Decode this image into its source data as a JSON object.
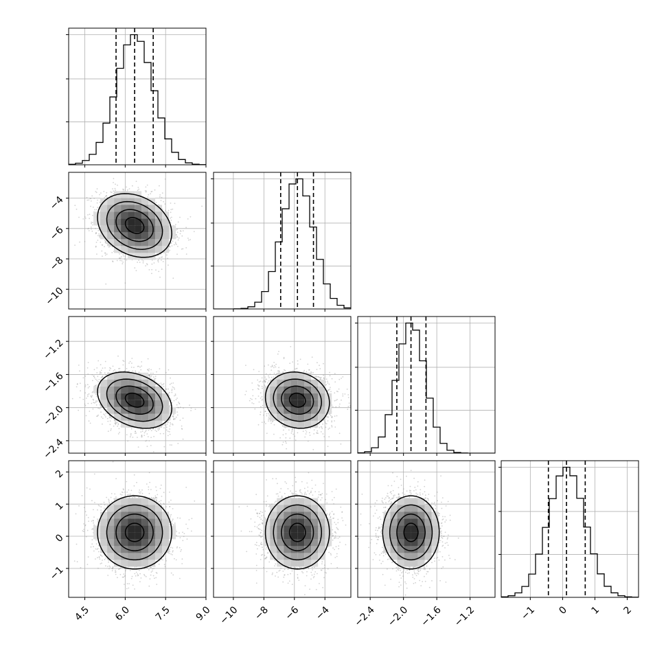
{
  "chart_data": {
    "type": "corner",
    "n_params": 4,
    "axis_ranges": [
      [
        3.9,
        9.0
      ],
      [
        -11.3,
        -2.3
      ],
      [
        -2.55,
        -0.9
      ],
      [
        -1.9,
        2.35
      ]
    ],
    "tick_values": [
      [
        4.5,
        6.0,
        7.5,
        9.0
      ],
      [
        -10,
        -8,
        -6,
        -4
      ],
      [
        -2.4,
        -2.0,
        -1.6,
        -1.2
      ],
      [
        -1,
        0,
        1,
        2
      ]
    ],
    "tick_labels": [
      [
        "4.5",
        "6.0",
        "7.5",
        "9.0"
      ],
      [
        "−10",
        "−8",
        "−6",
        "−4"
      ],
      [
        "−2.4",
        "−2.0",
        "−1.6",
        "−1.2"
      ],
      [
        "−1",
        "0",
        "1",
        "2"
      ]
    ],
    "quantiles": [
      [
        5.66,
        6.35,
        7.04
      ],
      [
        -6.9,
        -5.8,
        -4.75
      ],
      [
        -2.08,
        -1.91,
        -1.73
      ],
      [
        -0.44,
        0.12,
        0.7
      ]
    ],
    "posterior_stats": [
      {
        "mean": 6.35,
        "sd": 0.69
      },
      {
        "mean": -5.8,
        "sd": 1.05
      },
      {
        "mean": -1.91,
        "sd": 0.17
      },
      {
        "mean": 0.12,
        "sd": 0.57
      }
    ],
    "correlations": [
      {
        "pair": [
          1,
          0
        ],
        "rho": -0.25
      },
      {
        "pair": [
          2,
          0
        ],
        "rho": -0.3
      },
      {
        "pair": [
          2,
          1
        ],
        "rho": -0.1
      },
      {
        "pair": [
          3,
          0
        ],
        "rho": 0.0
      },
      {
        "pair": [
          3,
          1
        ],
        "rho": 0.0
      },
      {
        "pair": [
          3,
          2
        ],
        "rho": 0.0
      }
    ],
    "histogram_bins": 20,
    "grid": true,
    "title": "",
    "axis_names": [
      "",
      "",
      "",
      ""
    ]
  }
}
